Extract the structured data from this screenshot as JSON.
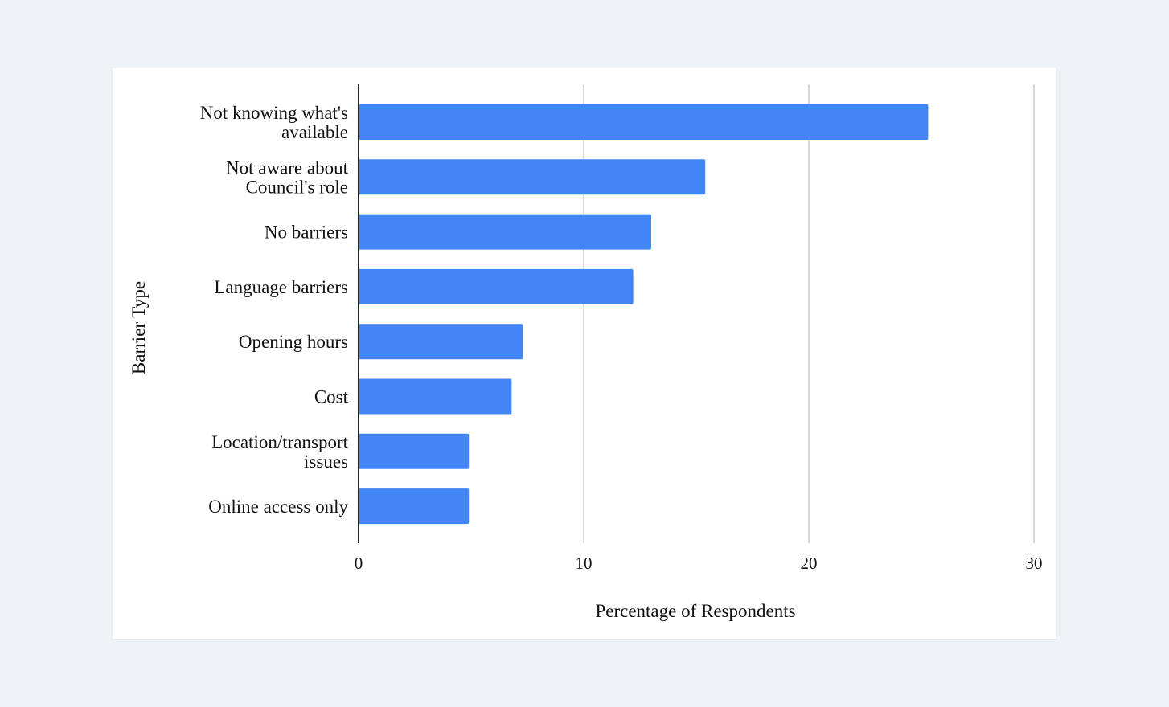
{
  "chart_data": {
    "type": "bar",
    "orientation": "horizontal",
    "categories": [
      [
        "Not knowing what's",
        "available"
      ],
      [
        "Not aware about",
        "Council's role"
      ],
      [
        "No barriers"
      ],
      [
        "Language barriers"
      ],
      [
        "Opening hours"
      ],
      [
        "Cost"
      ],
      [
        "Location/transport",
        "issues"
      ],
      [
        "Online access only"
      ]
    ],
    "values": [
      25.3,
      15.4,
      13.0,
      12.2,
      7.3,
      6.8,
      4.9,
      4.9
    ],
    "xlabel": "Percentage of Respondents",
    "ylabel": "Barrier Type",
    "xlim": [
      0,
      30
    ],
    "xticks": [
      "0",
      "10",
      "20",
      "30"
    ],
    "grid": "vertical",
    "bar_color": "#4285f4"
  }
}
